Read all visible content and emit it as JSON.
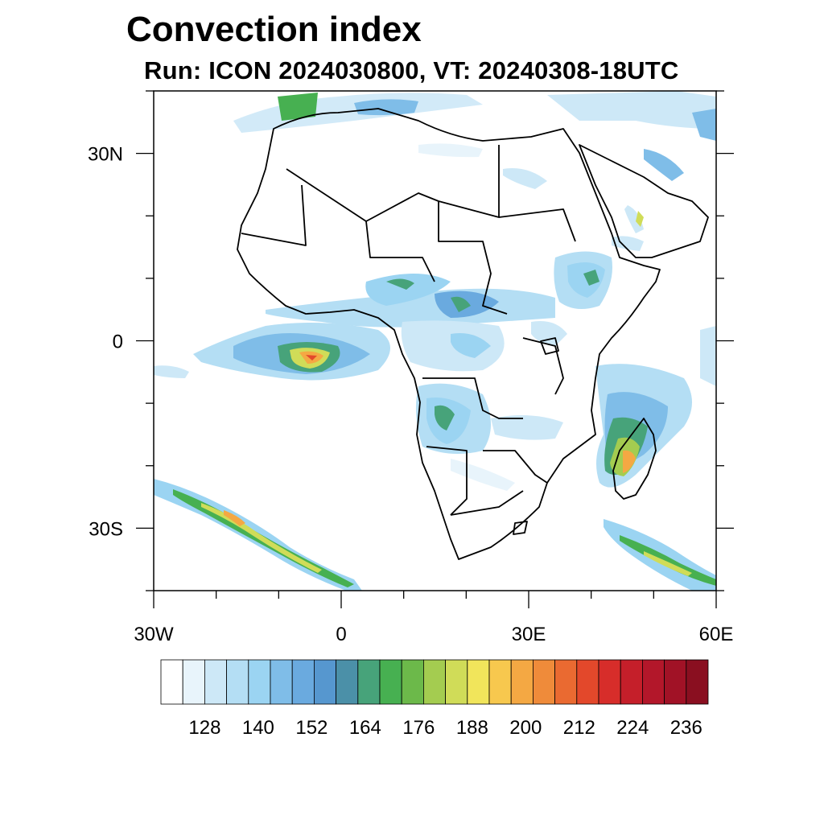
{
  "title": "Convection index",
  "subtitle": "Run: ICON 2024030800,  VT: 20240308-18UTC",
  "map": {
    "region": "Africa",
    "extent": {
      "lon": [
        -30,
        60
      ],
      "lat": [
        -40,
        40
      ]
    },
    "x_ticks": [
      {
        "lon": -30,
        "label": "30W"
      },
      {
        "lon": 0,
        "label": "0"
      },
      {
        "lon": 30,
        "label": "30E"
      },
      {
        "lon": 60,
        "label": "60E"
      }
    ],
    "y_ticks": [
      {
        "lat": 30,
        "label": "30N"
      },
      {
        "lat": 0,
        "label": "0"
      },
      {
        "lat": -30,
        "label": "30S"
      }
    ]
  },
  "colorbar": {
    "colors": [
      "#ffffff",
      "#e8f4fb",
      "#cde8f7",
      "#b4def4",
      "#9bd4f2",
      "#7fbde8",
      "#6aaadf",
      "#5697cf",
      "#4b90a8",
      "#47a37a",
      "#47b051",
      "#6cb94a",
      "#a4cc50",
      "#d0dc58",
      "#f1e55b",
      "#f7c84e",
      "#f4a843",
      "#ef8b3a",
      "#ea6a31",
      "#e3482b",
      "#d72d2a",
      "#c51f2a",
      "#b3172a",
      "#a11226",
      "#8a0f20"
    ],
    "labels": [
      "128",
      "140",
      "152",
      "164",
      "176",
      "188",
      "200",
      "212",
      "224",
      "236"
    ]
  }
}
